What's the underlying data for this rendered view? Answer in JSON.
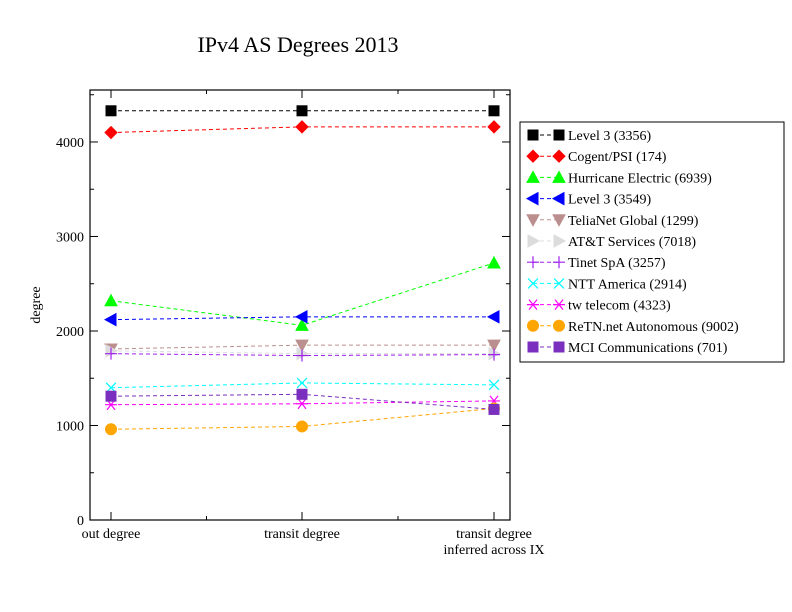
{
  "chart_data": {
    "type": "line",
    "title": "IPv4 AS Degrees 2013",
    "xlabel": "",
    "ylabel": "degree",
    "categories": [
      "out degree",
      "transit degree",
      "transit degree\ninferred across IX"
    ],
    "ylim": [
      0,
      4550
    ],
    "yticks": [
      0,
      1000,
      2000,
      3000,
      4000
    ],
    "grid": false,
    "legend_position": "right",
    "series": [
      {
        "name": "Level 3 (3356)",
        "values": [
          4330,
          4330,
          4330
        ],
        "color": "#000000",
        "marker": "square-filled"
      },
      {
        "name": "Cogent/PSI (174)",
        "values": [
          4100,
          4160,
          4160
        ],
        "color": "#ff0000",
        "marker": "diamond-filled"
      },
      {
        "name": "Hurricane Electric (6939)",
        "values": [
          2320,
          2060,
          2720
        ],
        "color": "#00ff00",
        "marker": "triangle-up-filled"
      },
      {
        "name": "Level 3 (3549)",
        "values": [
          2120,
          2150,
          2150
        ],
        "color": "#0000ff",
        "marker": "triangle-left-filled"
      },
      {
        "name": "TeliaNet Global (1299)",
        "values": [
          1810,
          1850,
          1850
        ],
        "color": "#bc8f8f",
        "marker": "triangle-down-filled"
      },
      {
        "name": "AT&T Services (7018)",
        "values": [
          1790,
          1760,
          1760
        ],
        "color": "#dcdcdc",
        "marker": "triangle-right-filled"
      },
      {
        "name": "Tinet SpA (3257)",
        "values": [
          1760,
          1740,
          1750
        ],
        "color": "#a020f0",
        "marker": "plus"
      },
      {
        "name": "NTT America (2914)",
        "values": [
          1400,
          1450,
          1430
        ],
        "color": "#00ffff",
        "marker": "x"
      },
      {
        "name": "tw telecom (4323)",
        "values": [
          1220,
          1230,
          1260
        ],
        "color": "#ff00ff",
        "marker": "asterisk"
      },
      {
        "name": "ReTN.net Autonomous (9002)",
        "values": [
          960,
          990,
          1180
        ],
        "color": "#ffa500",
        "marker": "circle-filled"
      },
      {
        "name": "MCI Communications (701)",
        "values": [
          1310,
          1330,
          1170
        ],
        "color": "#7b2fbe",
        "marker": "square-filled"
      }
    ]
  }
}
